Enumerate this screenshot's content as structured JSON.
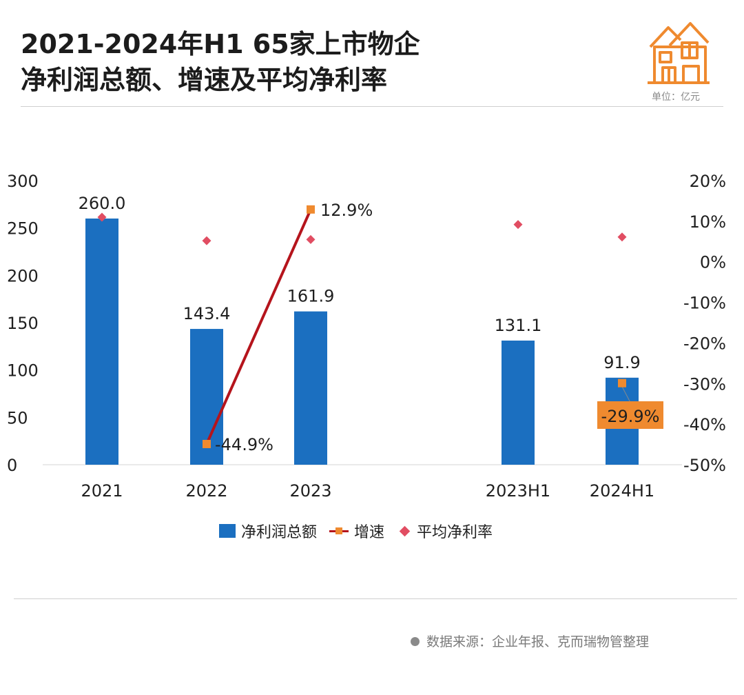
{
  "title_line1": "2021-2024年H1 65家上市物企",
  "title_line2": "净利润总额、增速及平均净利率",
  "unit_label": "单位：亿元",
  "source_text": "数据来源：企业年报、克而瑞物管整理",
  "logo_icon": "house-icon",
  "colors": {
    "bar": "#1b6fc0",
    "growth_line": "#b5141c",
    "growth_marker": "#ef8a2f",
    "margin_marker": "#e14d62",
    "callout_bg": "#ef8a2f"
  },
  "chart_data": {
    "type": "bar",
    "categories": [
      "2021",
      "2022",
      "2023",
      "2023H1",
      "2024H1"
    ],
    "category_gap_after": "2023",
    "ylim_left": [
      0,
      300
    ],
    "yticks_left": [
      0,
      50,
      100,
      150,
      200,
      250,
      300
    ],
    "ylim_right": [
      -50,
      20
    ],
    "yticks_right": [
      "-50%",
      "-40%",
      "-30%",
      "-20%",
      "-10%",
      "0%",
      "10%",
      "20%"
    ],
    "yticks_right_values": [
      -50,
      -40,
      -30,
      -20,
      -10,
      0,
      10,
      20
    ],
    "grid": false,
    "legend_position": "bottom",
    "series": [
      {
        "name": "净利润总额",
        "type": "bar",
        "axis": "left",
        "values": [
          260.0,
          143.4,
          161.9,
          131.1,
          91.9
        ],
        "labels": [
          "260.0",
          "143.4",
          "161.9",
          "131.1",
          "91.9"
        ]
      },
      {
        "name": "增速",
        "type": "line",
        "axis": "right",
        "values": [
          null,
          -44.9,
          12.9,
          null,
          -29.9
        ],
        "labels": [
          null,
          "-44.9%",
          "12.9%",
          null,
          "-29.9%"
        ]
      },
      {
        "name": "平均净利率",
        "type": "scatter",
        "axis": "right",
        "values": [
          11.0,
          5.2,
          5.5,
          9.2,
          6.1
        ]
      }
    ]
  }
}
